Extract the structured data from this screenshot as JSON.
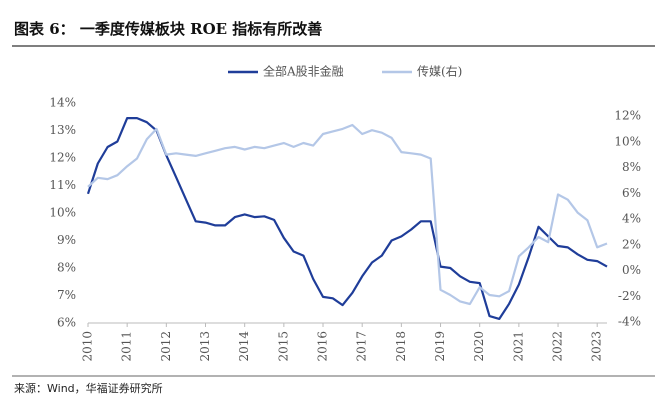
{
  "chart_data": {
    "type": "line",
    "title": "图表 6： 一季度传媒板块 ROE 指标有所改善",
    "source": "来源：Wind，华福证券研究所",
    "x": [
      2010,
      2010.25,
      2010.5,
      2010.75,
      2011,
      2011.25,
      2011.5,
      2011.75,
      2012,
      2012.25,
      2012.5,
      2012.75,
      2013,
      2013.25,
      2013.5,
      2013.75,
      2014,
      2014.25,
      2014.5,
      2014.75,
      2015,
      2015.25,
      2015.5,
      2015.75,
      2016,
      2016.25,
      2016.5,
      2016.75,
      2017,
      2017.25,
      2017.5,
      2017.75,
      2018,
      2018.25,
      2018.5,
      2018.75,
      2019,
      2019.25,
      2019.5,
      2019.75,
      2020,
      2020.25,
      2020.5,
      2020.75,
      2021,
      2021.25,
      2021.5,
      2021.75,
      2022,
      2022.25,
      2022.5,
      2022.75,
      2023,
      2023.25
    ],
    "series": [
      {
        "name": "全部A股非金融",
        "color": "#1f3d99",
        "axis": "y",
        "values": [
          10.7,
          11.8,
          12.4,
          12.6,
          13.45,
          13.45,
          13.3,
          13.0,
          12.1,
          11.3,
          10.5,
          9.7,
          9.65,
          9.55,
          9.55,
          9.85,
          9.95,
          9.85,
          9.88,
          9.75,
          9.1,
          8.6,
          8.45,
          7.6,
          6.95,
          6.9,
          6.65,
          7.1,
          7.7,
          8.2,
          8.45,
          9.0,
          9.15,
          9.4,
          9.7,
          9.7,
          8.05,
          8.0,
          7.7,
          7.5,
          7.45,
          6.25,
          6.15,
          6.7,
          7.4,
          8.4,
          9.5,
          9.15,
          8.8,
          8.75,
          8.5,
          8.3,
          8.25,
          8.05
        ]
      },
      {
        "name": "传媒(右)",
        "color": "#b4c7e7",
        "axis": "y2",
        "values": [
          6.5,
          7.2,
          7.1,
          7.4,
          8.1,
          8.7,
          10.2,
          11.0,
          9.0,
          9.1,
          9.0,
          8.9,
          9.1,
          9.3,
          9.5,
          9.6,
          9.4,
          9.6,
          9.5,
          9.7,
          9.9,
          9.6,
          9.9,
          9.7,
          10.6,
          10.8,
          11.0,
          11.3,
          10.6,
          10.9,
          10.7,
          10.3,
          9.2,
          9.1,
          9.0,
          8.7,
          -1.5,
          -1.9,
          -2.4,
          -2.6,
          -1.3,
          -1.9,
          -2.0,
          -1.6,
          1.1,
          1.8,
          2.6,
          2.2,
          5.9,
          5.5,
          4.5,
          3.9,
          1.8,
          2.1
        ]
      }
    ],
    "xlim": [
      2010,
      2023.25
    ],
    "xticks": [
      2010,
      2011,
      2012,
      2013,
      2014,
      2015,
      2016,
      2017,
      2018,
      2019,
      2020,
      2021,
      2022,
      2023
    ],
    "ylim": [
      6,
      14
    ],
    "yticks": [
      {
        "value": 6,
        "label": "6%"
      },
      {
        "value": 7,
        "label": "7%"
      },
      {
        "value": 8,
        "label": "8%"
      },
      {
        "value": 9,
        "label": "9%"
      },
      {
        "value": 10,
        "label": "10%"
      },
      {
        "value": 11,
        "label": "11%"
      },
      {
        "value": 12,
        "label": "12%"
      },
      {
        "value": 13,
        "label": "13%"
      },
      {
        "value": 14,
        "label": "14%"
      }
    ],
    "y2lim": [
      -4,
      12
    ],
    "y2ticks": [
      {
        "value": -4,
        "label": "-4%"
      },
      {
        "value": -2,
        "label": "-2%"
      },
      {
        "value": 0,
        "label": "0%"
      },
      {
        "value": 2,
        "label": "2%"
      },
      {
        "value": 4,
        "label": "4%"
      },
      {
        "value": 6,
        "label": "6%"
      },
      {
        "value": 8,
        "label": "8%"
      },
      {
        "value": 10,
        "label": "10%"
      },
      {
        "value": 12,
        "label": "12%"
      }
    ],
    "grid": false,
    "legend": "top"
  }
}
